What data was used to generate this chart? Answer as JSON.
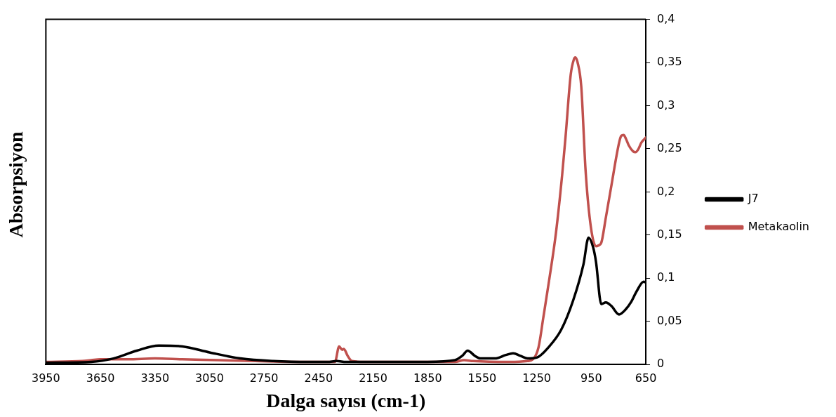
{
  "chart_data": {
    "type": "line",
    "xlabel": "Dalga sayısı (cm-1)",
    "ylabel": "Absorpsiyon",
    "xlim": [
      3950,
      650
    ],
    "xticks": [
      3950,
      3650,
      3350,
      3050,
      2750,
      2450,
      2150,
      1850,
      1550,
      1250,
      950,
      650
    ],
    "ylim": [
      0,
      0.4
    ],
    "yticks": [
      0,
      {
        "value": 0.05,
        "label": "0,05"
      },
      {
        "value": 0.1,
        "label": "0,1"
      },
      {
        "value": 0.15,
        "label": "0,15"
      },
      {
        "value": 0.2,
        "label": "0,2"
      },
      {
        "value": 0.25,
        "label": "0,25"
      },
      {
        "value": 0.3,
        "label": "0,3"
      },
      {
        "value": 0.35,
        "label": "0,35"
      },
      {
        "value": 0.4,
        "label": "0,4"
      }
    ],
    "grid": false,
    "legend": "right",
    "marker": "none",
    "line_style": "solid",
    "series": [
      {
        "name": "J7",
        "color": "#000000",
        "x": [
          3950,
          3700,
          3578,
          3450,
          3329,
          3199,
          3050,
          2880,
          2700,
          2500,
          2400,
          2350,
          2300,
          2100,
          1850,
          1700,
          1660,
          1630,
          1590,
          1560,
          1480,
          1420,
          1380,
          1340,
          1300,
          1250,
          1185,
          1116,
          1050,
          993,
          965,
          940,
          924,
          895,
          870,
          840,
          797,
          760,
          732,
          700,
          662,
          650
        ],
        "values": [
          0.002,
          0.003,
          0.007,
          0.016,
          0.022,
          0.021,
          0.014,
          0.007,
          0.004,
          0.003,
          0.003,
          0.004,
          0.003,
          0.003,
          0.003,
          0.005,
          0.01,
          0.016,
          0.01,
          0.007,
          0.007,
          0.011,
          0.013,
          0.01,
          0.007,
          0.008,
          0.02,
          0.04,
          0.074,
          0.116,
          0.147,
          0.136,
          0.119,
          0.07,
          0.072,
          0.068,
          0.058,
          0.064,
          0.072,
          0.085,
          0.096,
          0.095
        ]
      },
      {
        "name": "Metakaolin",
        "color": "#c0504d",
        "x": [
          3950,
          3750,
          3700,
          3650,
          3500,
          3350,
          3200,
          3000,
          2800,
          2500,
          2360,
          2337,
          2320,
          2311,
          2290,
          2267,
          2200,
          1900,
          1700,
          1650,
          1600,
          1400,
          1300,
          1271,
          1240,
          1214,
          1180,
          1144,
          1110,
          1091,
          1063,
          1045,
          1038,
          1025,
          1005,
          981,
          952,
          924,
          910,
          895,
          870,
          842,
          797,
          785,
          772,
          760,
          744,
          720,
          707,
          690,
          675,
          650
        ],
        "values": [
          0.003,
          0.004,
          0.005,
          0.006,
          0.006,
          0.007,
          0.006,
          0.005,
          0.004,
          0.003,
          0.003,
          0.021,
          0.017,
          0.018,
          0.01,
          0.004,
          0.003,
          0.003,
          0.003,
          0.005,
          0.004,
          0.003,
          0.004,
          0.006,
          0.02,
          0.054,
          0.1,
          0.153,
          0.22,
          0.265,
          0.336,
          0.354,
          0.356,
          0.35,
          0.322,
          0.224,
          0.159,
          0.137,
          0.138,
          0.141,
          0.17,
          0.204,
          0.257,
          0.265,
          0.266,
          0.262,
          0.254,
          0.247,
          0.246,
          0.25,
          0.257,
          0.263
        ]
      }
    ]
  }
}
